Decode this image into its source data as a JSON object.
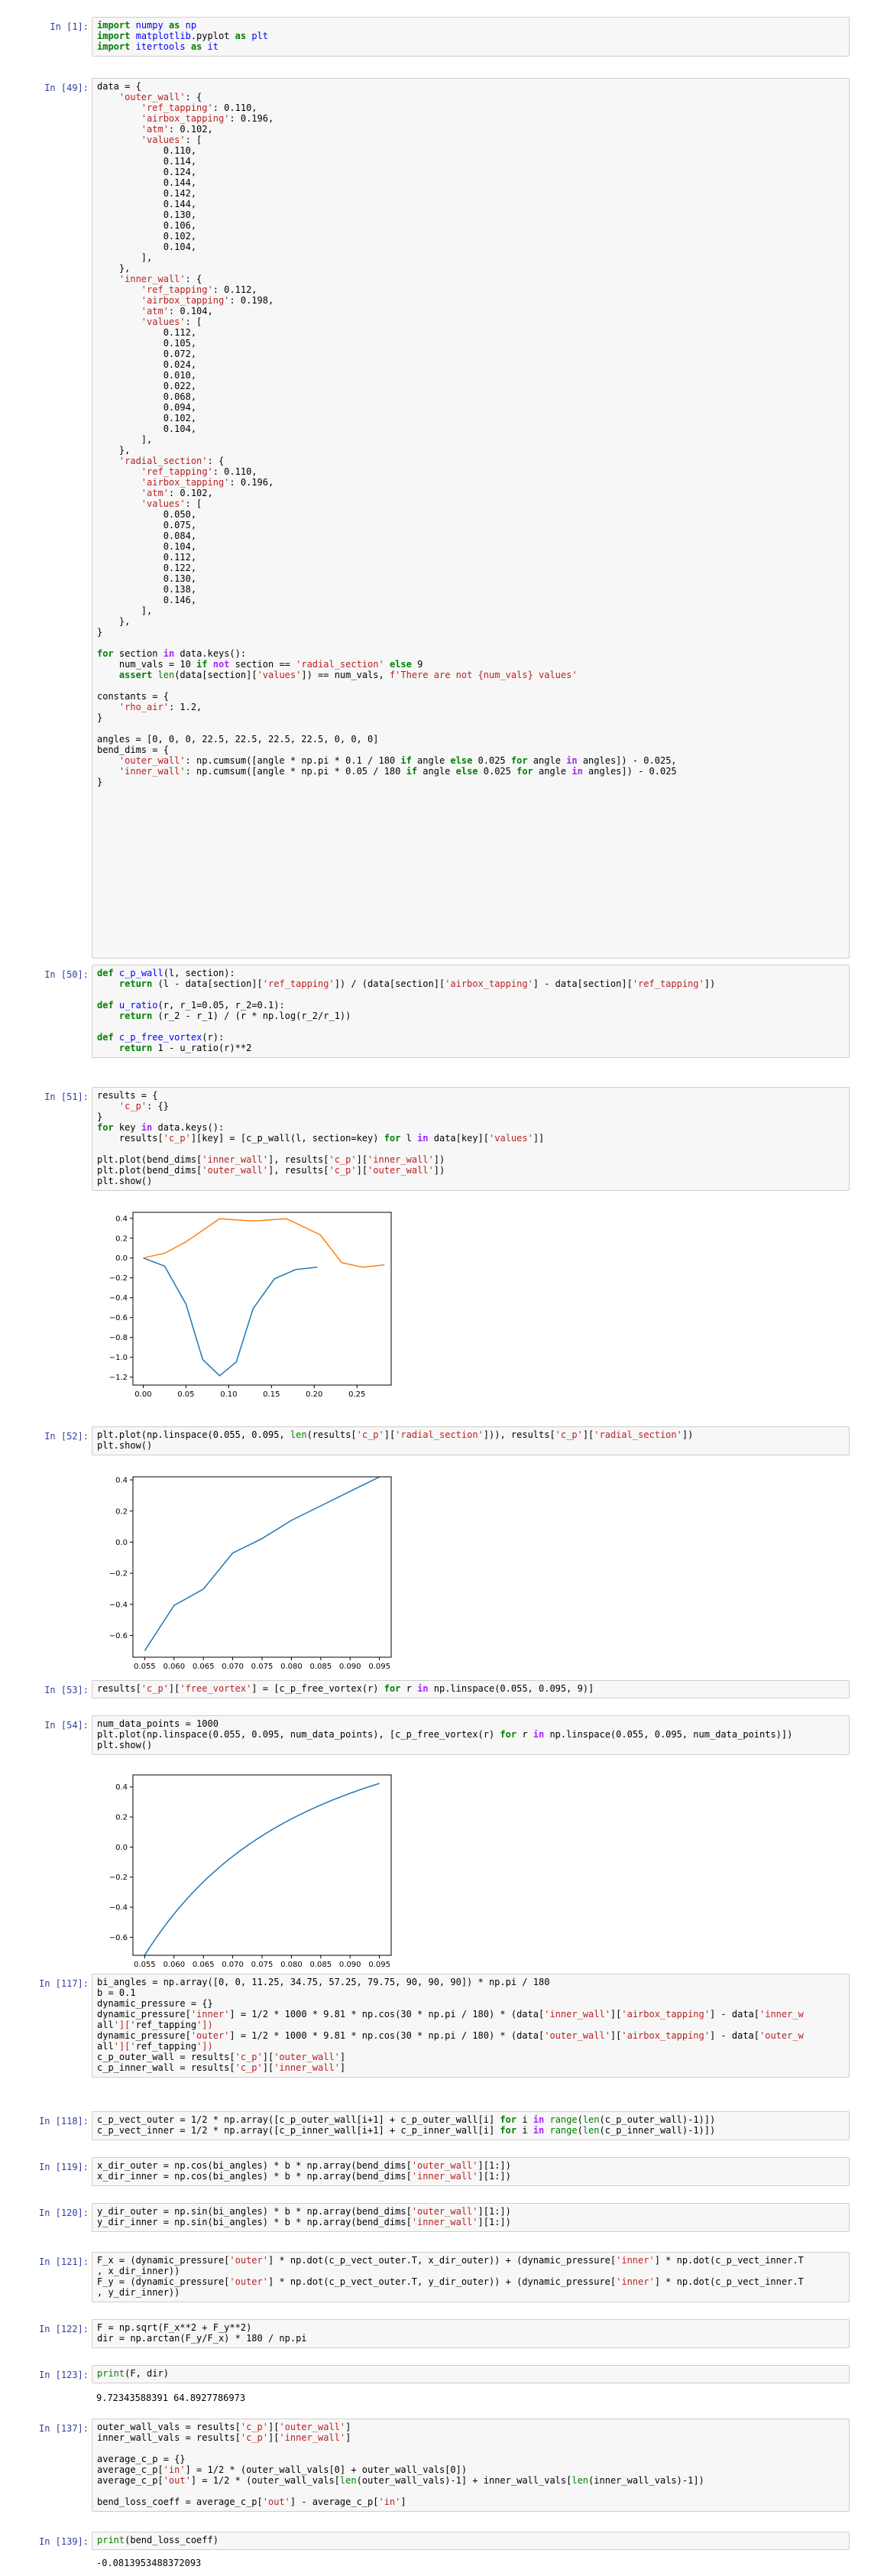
{
  "cells": [
    {
      "prompt": "In [1]:",
      "lines": [
        "import numpy as np",
        "import matplotlib.pyplot as plt",
        "import itertools as it"
      ]
    },
    {
      "prompt": "In [49]:",
      "lines": [
        "data = {",
        "    'outer_wall': {",
        "        'ref_tapping': 0.110,",
        "        'airbox_tapping': 0.196,",
        "        'atm': 0.102,",
        "        'values': [",
        "            0.110,",
        "            0.114,",
        "            0.124,",
        "            0.144,",
        "            0.142,",
        "            0.144,",
        "            0.130,",
        "            0.106,",
        "            0.102,",
        "            0.104,",
        "        ],",
        "    },",
        "    'inner_wall': {",
        "        'ref_tapping': 0.112,",
        "        'airbox_tapping': 0.198,",
        "        'atm': 0.104,",
        "        'values': [",
        "            0.112,",
        "            0.105,",
        "            0.072,",
        "            0.024,",
        "            0.010,",
        "            0.022,",
        "            0.068,",
        "            0.094,",
        "            0.102,",
        "            0.104,",
        "        ],",
        "    },",
        "    'radial_section': {",
        "        'ref_tapping': 0.110,",
        "        'airbox_tapping': 0.196,",
        "        'atm': 0.102,",
        "        'values': [",
        "            0.050,",
        "            0.075,",
        "            0.084,",
        "            0.104,",
        "            0.112,",
        "            0.122,",
        "            0.130,",
        "            0.138,",
        "            0.146,",
        "        ],",
        "    },",
        "}",
        "",
        "for section in data.keys():",
        "    num_vals = 10 if not section == 'radial_section' else 9",
        "    assert len(data[section]['values']) == num_vals, f'There are not {num_vals} values'",
        "",
        "constants = {",
        "    'rho_air': 1.2,",
        "}",
        "",
        "angles = [0, 0, 0, 22.5, 22.5, 22.5, 22.5, 0, 0, 0]",
        "bend_dims = {",
        "    'outer_wall': np.cumsum([angle * np.pi * 0.1 / 180 if angle else 0.025 for angle in angles]) - 0.025,",
        "    'inner_wall': np.cumsum([angle * np.pi * 0.05 / 180 if angle else 0.025 for angle in angles]) - 0.025",
        "}"
      ]
    },
    {
      "prompt": "In [50]:",
      "lines": [
        "def c_p_wall(l, section):",
        "    return (l - data[section]['ref_tapping']) / (data[section]['airbox_tapping'] - data[section]['ref_tapping'])",
        "",
        "def u_ratio(r, r_1=0.05, r_2=0.1):",
        "    return (r_2 - r_1) / (r * np.log(r_2/r_1))",
        "",
        "def c_p_free_vortex(r):",
        "    return 1 - u_ratio(r)**2"
      ]
    },
    {
      "prompt": "In [51]:",
      "lines": [
        "results = {",
        "    'c_p': {}",
        "}",
        "for key in data.keys():",
        "    results['c_p'][key] = [c_p_wall(l, section=key) for l in data[key]['values']]",
        "",
        "plt.plot(bend_dims['inner_wall'], results['c_p']['inner_wall'])",
        "plt.plot(bend_dims['outer_wall'], results['c_p']['outer_wall'])",
        "plt.show()"
      ]
    },
    {
      "prompt": "In [52]:",
      "lines": [
        "plt.plot(np.linspace(0.055, 0.095, len(results['c_p']['radial_section'])), results['c_p']['radial_section'])",
        "plt.show()"
      ]
    },
    {
      "prompt": "In [53]:",
      "lines": [
        "results['c_p']['free_vortex'] = [c_p_free_vortex(r) for r in np.linspace(0.055, 0.095, 9)]"
      ]
    },
    {
      "prompt": "In [54]:",
      "lines": [
        "num_data_points = 1000",
        "plt.plot(np.linspace(0.055, 0.095, num_data_points), [c_p_free_vortex(r) for r in np.linspace(0.055, 0.095, num_data_points)])",
        "plt.show()"
      ]
    },
    {
      "prompt": "In [117]:",
      "lines": [
        "bi_angles = np.array([0, 0, 11.25, 34.75, 57.25, 79.75, 90, 90, 90]) * np.pi / 180",
        "b = 0.1",
        "dynamic_pressure = {}",
        "dynamic_pressure['inner'] = 1/2 * 1000 * 9.81 * np.cos(30 * np.pi / 180) * (data['inner_wall']['airbox_tapping'] - data['inner_w",
        "all']['ref_tapping'])",
        "dynamic_pressure['outer'] = 1/2 * 1000 * 9.81 * np.cos(30 * np.pi / 180) * (data['outer_wall']['airbox_tapping'] - data['outer_w",
        "all']['ref_tapping'])",
        "c_p_outer_wall = results['c_p']['outer_wall']",
        "c_p_inner_wall = results['c_p']['inner_wall']"
      ]
    },
    {
      "prompt": "In [118]:",
      "lines": [
        "c_p_vect_outer = 1/2 * np.array([c_p_outer_wall[i+1] + c_p_outer_wall[i] for i in range(len(c_p_outer_wall)-1)])",
        "c_p_vect_inner = 1/2 * np.array([c_p_inner_wall[i+1] + c_p_inner_wall[i] for i in range(len(c_p_inner_wall)-1)])"
      ]
    },
    {
      "prompt": "In [119]:",
      "lines": [
        "x_dir_outer = np.cos(bi_angles) * b * np.array(bend_dims['outer_wall'][1:])",
        "x_dir_inner = np.cos(bi_angles) * b * np.array(bend_dims['inner_wall'][1:])"
      ]
    },
    {
      "prompt": "In [120]:",
      "lines": [
        "y_dir_outer = np.sin(bi_angles) * b * np.array(bend_dims['outer_wall'][1:])",
        "y_dir_inner = np.sin(bi_angles) * b * np.array(bend_dims['inner_wall'][1:])"
      ]
    },
    {
      "prompt": "In [121]:",
      "lines": [
        "F_x = (dynamic_pressure['outer'] * np.dot(c_p_vect_outer.T, x_dir_outer)) + (dynamic_pressure['inner'] * np.dot(c_p_vect_inner.T",
        ", x_dir_inner))",
        "F_y = (dynamic_pressure['outer'] * np.dot(c_p_vect_outer.T, y_dir_outer)) + (dynamic_pressure['inner'] * np.dot(c_p_vect_inner.T",
        ", y_dir_inner))"
      ]
    },
    {
      "prompt": "In [122]:",
      "lines": [
        "F = np.sqrt(F_x**2 + F_y**2)",
        "dir = np.arctan(F_y/F_x) * 180 / np.pi"
      ]
    },
    {
      "prompt": "In [123]:",
      "lines": [
        "print(F, dir)"
      ]
    },
    {
      "prompt": "In [137]:",
      "lines": [
        "outer_wall_vals = results['c_p']['outer_wall']",
        "inner_wall_vals = results['c_p']['inner_wall']",
        "",
        "average_c_p = {}",
        "average_c_p['in'] = 1/2 * (outer_wall_vals[0] + outer_wall_vals[0])",
        "average_c_p['out'] = 1/2 * (outer_wall_vals[len(outer_wall_vals)-1] + inner_wall_vals[len(inner_wall_vals)-1])",
        "",
        "bend_loss_coeff = average_c_p['out'] - average_c_p['in']"
      ]
    },
    {
      "prompt": "In [139]:",
      "lines": [
        "print(bend_loss_coeff)"
      ]
    }
  ],
  "outputs": {
    "in123": "9.72343588391 64.8927786973",
    "in139": "-0.0813953488372093"
  },
  "chart_data": [
    {
      "type": "line",
      "xlim": [
        -0.012,
        0.29
      ],
      "ylim": [
        -1.28,
        0.46
      ],
      "xticks": [
        "0.00",
        "0.05",
        "0.10",
        "0.15",
        "0.20",
        "0.25"
      ],
      "xtick_values": [
        0,
        0.05,
        0.1,
        0.15,
        0.2,
        0.25
      ],
      "yticks": [
        "0.4",
        "0.2",
        "0.0",
        "−0.2",
        "−0.4",
        "−0.6",
        "−0.8",
        "−1.0",
        "−1.2"
      ],
      "ytick_values": [
        0.4,
        0.2,
        0,
        -0.2,
        -0.4,
        -0.6,
        -0.8,
        -1.0,
        -1.2
      ],
      "series": [
        {
          "color": "#1f77b4",
          "x": [
            0,
            0.025,
            0.05,
            0.0696,
            0.0893,
            0.1089,
            0.1285,
            0.1535,
            0.1785,
            0.2035
          ],
          "y": [
            0,
            -0.081,
            -0.465,
            -1.023,
            -1.186,
            -1.047,
            -0.512,
            -0.209,
            -0.116,
            -0.093
          ]
        },
        {
          "color": "#ff7f0e",
          "x": [
            0,
            0.025,
            0.05,
            0.0893,
            0.1285,
            0.1678,
            0.2071,
            0.2321,
            0.2571,
            0.2821
          ],
          "y": [
            0,
            0.047,
            0.163,
            0.395,
            0.372,
            0.395,
            0.233,
            -0.047,
            -0.093,
            -0.07
          ]
        }
      ]
    },
    {
      "type": "line",
      "xlim": [
        0.053,
        0.097
      ],
      "ylim": [
        -0.74,
        0.42
      ],
      "xticks": [
        "0.055",
        "0.060",
        "0.065",
        "0.070",
        "0.075",
        "0.080",
        "0.085",
        "0.090",
        "0.095"
      ],
      "xtick_values": [
        0.055,
        0.06,
        0.065,
        0.07,
        0.075,
        0.08,
        0.085,
        0.09,
        0.095
      ],
      "yticks": [
        "0.4",
        "0.2",
        "0.0",
        "−0.2",
        "−0.4",
        "−0.6"
      ],
      "ytick_values": [
        0.4,
        0.2,
        0,
        -0.2,
        -0.4,
        -0.6
      ],
      "series": [
        {
          "color": "#1f77b4",
          "x": [
            0.055,
            0.06,
            0.065,
            0.07,
            0.075,
            0.08,
            0.085,
            0.09,
            0.095
          ],
          "y": [
            -0.698,
            -0.407,
            -0.302,
            -0.07,
            0.023,
            0.14,
            0.233,
            0.326,
            0.419
          ]
        }
      ]
    },
    {
      "type": "line",
      "xlim": [
        0.053,
        0.097
      ],
      "ylim": [
        -0.72,
        0.48
      ],
      "xticks": [
        "0.055",
        "0.060",
        "0.065",
        "0.070",
        "0.075",
        "0.080",
        "0.085",
        "0.090",
        "0.095"
      ],
      "xtick_values": [
        0.055,
        0.06,
        0.065,
        0.07,
        0.075,
        0.08,
        0.085,
        0.09,
        0.095
      ],
      "yticks": [
        "0.4",
        "0.2",
        "0.0",
        "−0.2",
        "−0.4",
        "−0.6"
      ],
      "ytick_values": [
        0.4,
        0.2,
        0,
        -0.2,
        -0.4,
        -0.6
      ],
      "series": [
        {
          "color": "#1f77b4",
          "function": "c_p_free_vortex",
          "x_range": [
            0.055,
            0.095
          ],
          "points": 200
        }
      ]
    }
  ]
}
